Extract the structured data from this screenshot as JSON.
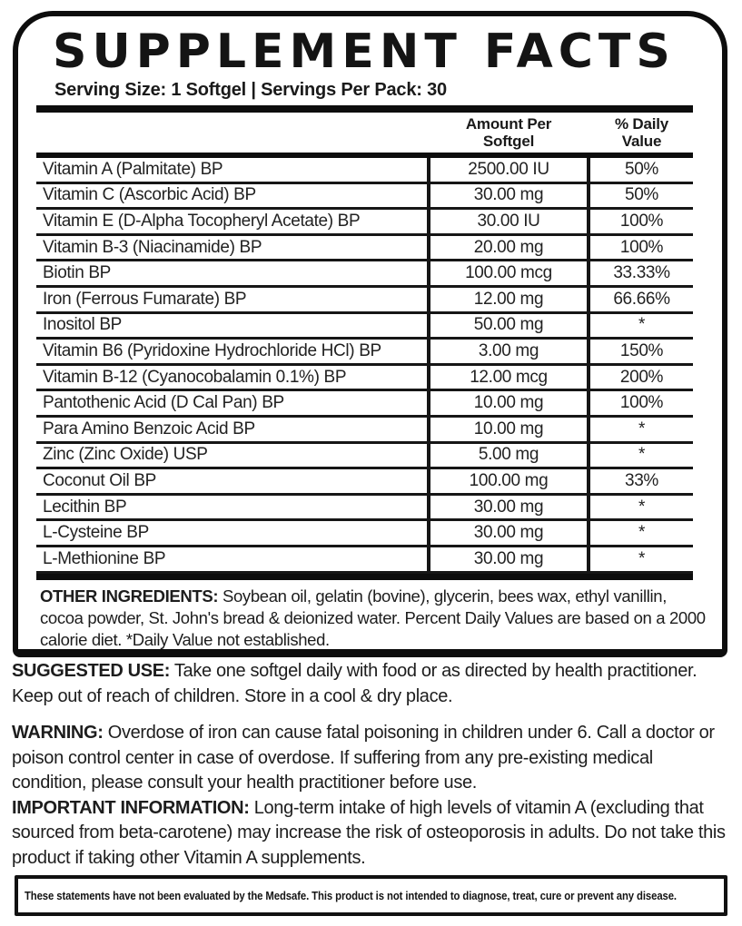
{
  "colors": {
    "border": "#0d0d0d",
    "text": "#1a1a1a",
    "background": "#ffffff"
  },
  "label": {
    "title": "SUPPLEMENT FACTS",
    "serving_line": "Serving Size: 1 Softgel | Servings Per Pack: 30"
  },
  "table": {
    "headers": {
      "amount": "Amount Per\nSoftgel",
      "daily_value": "% Daily\nValue"
    },
    "rows": [
      {
        "name": "Vitamin A (Palmitate) BP",
        "amount": "2500.00 IU",
        "daily_value": "50%"
      },
      {
        "name": "Vitamin C (Ascorbic Acid) BP",
        "amount": "30.00 mg",
        "daily_value": "50%"
      },
      {
        "name": "Vitamin E (D-Alpha Tocopheryl Acetate) BP",
        "amount": "30.00 IU",
        "daily_value": "100%"
      },
      {
        "name": "Vitamin B-3 (Niacinamide) BP",
        "amount": "20.00 mg",
        "daily_value": "100%"
      },
      {
        "name": "Biotin BP",
        "amount": "100.00 mcg",
        "daily_value": "33.33%"
      },
      {
        "name": "Iron (Ferrous Fumarate) BP",
        "amount": "12.00 mg",
        "daily_value": "66.66%"
      },
      {
        "name": "Inositol BP",
        "amount": "50.00 mg",
        "daily_value": "*"
      },
      {
        "name": "Vitamin B6 (Pyridoxine Hydrochloride HCl) BP",
        "amount": "3.00 mg",
        "daily_value": "150%"
      },
      {
        "name": "Vitamin B-12 (Cyanocobalamin 0.1%) BP",
        "amount": "12.00 mcg",
        "daily_value": "200%"
      },
      {
        "name": "Pantothenic Acid (D Cal Pan) BP",
        "amount": "10.00 mg",
        "daily_value": "100%"
      },
      {
        "name": "Para Amino Benzoic Acid BP",
        "amount": "10.00 mg",
        "daily_value": "*"
      },
      {
        "name": "Zinc (Zinc Oxide) USP",
        "amount": "5.00 mg",
        "daily_value": "*"
      },
      {
        "name": "Coconut Oil BP",
        "amount": "100.00 mg",
        "daily_value": "33%"
      },
      {
        "name": "Lecithin BP",
        "amount": "30.00 mg",
        "daily_value": "*"
      },
      {
        "name": "L-Cysteine BP",
        "amount": "30.00 mg",
        "daily_value": "*"
      },
      {
        "name": "L-Methionine BP",
        "amount": "30.00 mg",
        "daily_value": "*"
      }
    ]
  },
  "other_ingredients": {
    "label": "OTHER INGREDIENTS:",
    "text": "Soybean oil, gelatin (bovine), glycerin, bees wax, ethyl vanillin, cocoa powder, St. John's bread & deionized water. Percent Daily Values are based on a 2000 calorie diet. *Daily Value not established."
  },
  "suggested_use": {
    "label": "SUGGESTED USE:",
    "text": "Take one softgel daily with food or as directed by health practitioner. Keep out of reach of children. Store in a cool & dry place."
  },
  "warning": {
    "label": "WARNING:",
    "text": "Overdose of iron can cause fatal poisoning in children under 6. Call a doctor or poison control center in case of overdose. If suffering from any pre-existing medical condition, please consult your health practitioner before use."
  },
  "important_information": {
    "label": "IMPORTANT INFORMATION:",
    "text": "Long-term intake of high levels of vitamin A (excluding that sourced from beta-carotene) may increase the risk of osteoporosis in adults. Do not take this product if taking other Vitamin A supplements."
  },
  "disclaimer": "These statements have not been evaluated by the Medsafe. This product is not intended to diagnose, treat, cure or prevent any disease."
}
